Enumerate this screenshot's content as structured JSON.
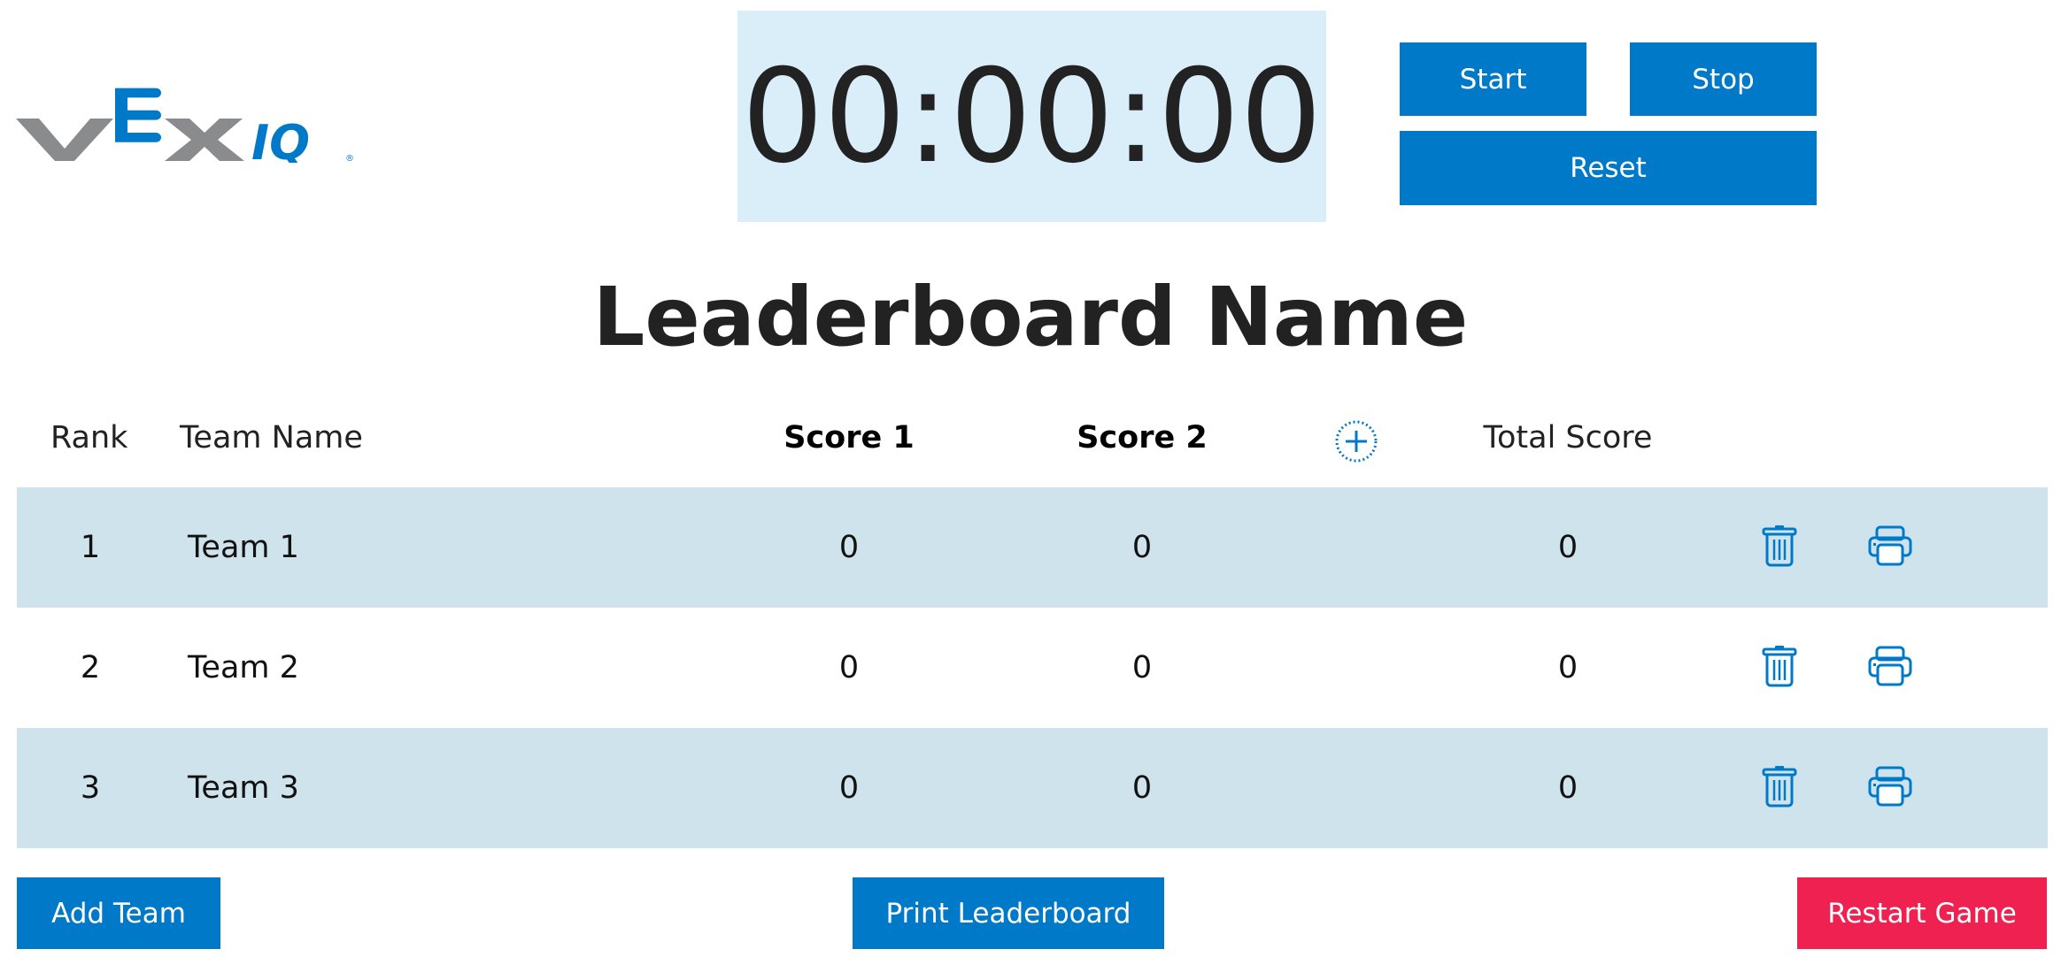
{
  "logo": {
    "text": "VEX IQ",
    "colors": {
      "gray": "#8a8b8d",
      "blue": "#0079c8"
    }
  },
  "timer": {
    "display": "00:00:00"
  },
  "controls": {
    "start": "Start",
    "stop": "Stop",
    "reset": "Reset"
  },
  "title": "Leaderboard Name",
  "table": {
    "headers": {
      "rank": "Rank",
      "team": "Team Name",
      "score1": "Score 1",
      "score2": "Score 2",
      "total": "Total Score"
    },
    "add_column_icon": "plus-circle-dotted-icon",
    "rows": [
      {
        "rank": "1",
        "team": "Team 1",
        "score1": "0",
        "score2": "0",
        "total": "0"
      },
      {
        "rank": "2",
        "team": "Team 2",
        "score1": "0",
        "score2": "0",
        "total": "0"
      },
      {
        "rank": "3",
        "team": "Team 3",
        "score1": "0",
        "score2": "0",
        "total": "0"
      }
    ]
  },
  "footer": {
    "add_team": "Add Team",
    "print": "Print Leaderboard",
    "restart": "Restart Game"
  },
  "colors": {
    "accent": "#0079c8",
    "danger": "#ee2150",
    "row_alt": "#cfe3ec",
    "timer_bg": "#d9eef9"
  }
}
